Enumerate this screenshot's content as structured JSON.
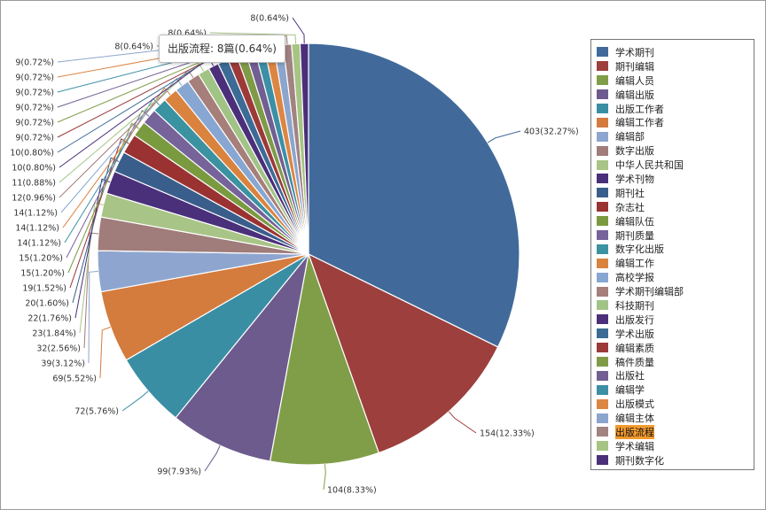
{
  "chart_data": {
    "type": "pie",
    "categories": [
      "学术期刊",
      "期刊编辑",
      "编辑人员",
      "编辑出版",
      "出版工作者",
      "编辑工作者",
      "编辑部",
      "数字出版",
      "中华人民共和国",
      "学术刊物",
      "期刊社",
      "杂志社",
      "编辑队伍",
      "期刊质量",
      "数字化出版",
      "编辑工作",
      "高校学报",
      "学术期刊编辑部",
      "科技期刊",
      "出版发行",
      "学术出版",
      "编辑素质",
      "稿件质量",
      "出版社",
      "编辑学",
      "出版模式",
      "编辑主体",
      "出版流程",
      "学术编辑",
      "期刊数字化"
    ],
    "values": [
      403,
      154,
      104,
      99,
      72,
      69,
      39,
      32,
      23,
      22,
      20,
      19,
      15,
      15,
      14,
      14,
      14,
      12,
      11,
      10,
      10,
      9,
      9,
      9,
      9,
      9,
      9,
      8,
      8,
      8
    ],
    "data_labels": [
      "403(32.27%)",
      "154(12.33%)",
      "104(8.33%)",
      "99(7.93%)",
      "72(5.76%)",
      "69(5.52%)",
      "39(3.12%)",
      "32(2.56%)",
      "23(1.84%)",
      "22(1.76%)",
      "20(1.60%)",
      "19(1.52%)",
      "15(1.20%)",
      "15(1.20%)",
      "14(1.12%)",
      "14(1.12%)",
      "14(1.12%)",
      "12(0.96%)",
      "11(0.88%)",
      "10(0.80%)",
      "10(0.80%)",
      "9(0.72%)",
      "9(0.72%)",
      "9(0.72%)",
      "9(0.72%)",
      "9(0.72%)",
      "9(0.72%)",
      "8(0.64%)",
      "8(0.64%)",
      "8(0.64%)"
    ],
    "colors": [
      "#416a9b",
      "#9c3f3d",
      "#809e48",
      "#6d5b8e",
      "#3a8ea3",
      "#d47b3e",
      "#8ea6cf",
      "#a07c7b",
      "#a9c487",
      "#4a2f7a",
      "#3a5e8c",
      "#9a3232",
      "#7a9a40",
      "#76639a",
      "#3b92a0",
      "#d9833f",
      "#87a7d2",
      "#a67e7a",
      "#a1c486",
      "#4b2f7a",
      "#3c6b96",
      "#9c3a3a",
      "#7f9b48",
      "#725f91",
      "#3c8fa5",
      "#dd8543",
      "#8ba5cd",
      "#a18382",
      "#a6c483",
      "#4b2f7a"
    ],
    "tooltip": "出版流程: 8篇(0.64%)",
    "highlighted": "出版流程",
    "legend_position": "right"
  }
}
